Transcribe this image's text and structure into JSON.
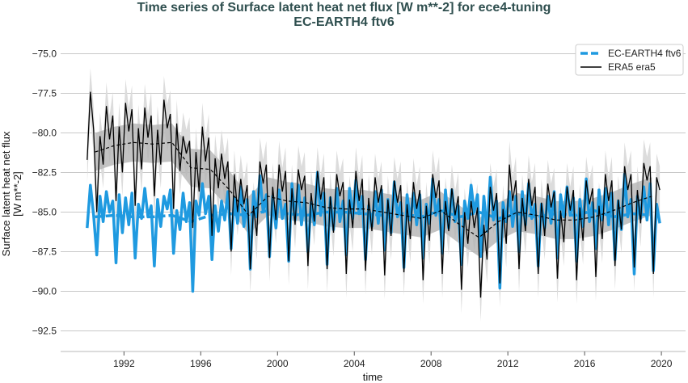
{
  "chart_data": {
    "type": "line",
    "title": "Time series of Surface latent heat net flux [W m**-2] for ece4-tuning",
    "subtitle": "EC-EARTH4 ftv6",
    "xlabel": "time",
    "ylabel": [
      "Surface latent heat net flux",
      "[W m**-2]"
    ],
    "xlim": [
      1988.7,
      2021.26
    ],
    "ylim": [
      -93.8,
      -73.9
    ],
    "xticks": [
      1992,
      1996,
      2000,
      2004,
      2008,
      2012,
      2016,
      2020
    ],
    "yticks": [
      -75.0,
      -77.5,
      -80.0,
      -82.5,
      -85.0,
      -87.5,
      -90.0,
      -92.5
    ],
    "grid": "horizontal",
    "legend_placement": "top-right",
    "start_year": 1990,
    "samples_per_year": 6,
    "series": [
      {
        "name": "EC-EARTH4 ftv6",
        "color": "#1f9ae0",
        "values": [
          -86.0,
          -83.3,
          -85.2,
          -87.7,
          -84.0,
          -85.6,
          -83.7,
          -85.0,
          -84.3,
          -88.2,
          -83.9,
          -86.3,
          -84.1,
          -85.8,
          -83.8,
          -87.9,
          -84.5,
          -85.4,
          -83.5,
          -85.3,
          -84.6,
          -88.4,
          -84.2,
          -85.9,
          -84.0,
          -84.8,
          -83.6,
          -87.6,
          -84.9,
          -86.1,
          -83.8,
          -85.6,
          -84.4,
          -90.0,
          -84.3,
          -85.2,
          -83.2,
          -85.1,
          -84.0,
          -88.0,
          -84.6,
          -86.2,
          -84.3,
          -85.5,
          -83.7,
          -87.3,
          -84.1,
          -85.7,
          -83.4,
          -85.9,
          -84.2,
          -88.6,
          -83.7,
          -85.3,
          -82.7,
          -85.0,
          -83.9,
          -87.8,
          -84.0,
          -86.0,
          -83.6,
          -85.4,
          -84.5,
          -88.1,
          -83.2,
          -85.5,
          -83.3,
          -85.8,
          -84.1,
          -87.5,
          -84.4,
          -85.8,
          -82.5,
          -85.2,
          -83.8,
          -88.3,
          -84.1,
          -86.1,
          -83.5,
          -85.6,
          -84.3,
          -87.7,
          -83.5,
          -85.4,
          -83.0,
          -85.1,
          -84.0,
          -88.0,
          -84.6,
          -85.9,
          -83.7,
          -85.7,
          -83.6,
          -87.4,
          -84.2,
          -86.3,
          -83.1,
          -85.3,
          -84.4,
          -88.5,
          -83.9,
          -85.5,
          -83.8,
          -85.8,
          -83.9,
          -87.9,
          -84.5,
          -85.7,
          -82.9,
          -85.2,
          -84.2,
          -87.6,
          -83.6,
          -86.0,
          -83.6,
          -85.6,
          -84.6,
          -88.3,
          -84.3,
          -85.4,
          -83.3,
          -85.0,
          -83.9,
          -87.8,
          -84.0,
          -86.2,
          -82.8,
          -85.5,
          -84.3,
          -89.8,
          -84.4,
          -85.6,
          -83.7,
          -85.9,
          -84.0,
          -87.5,
          -83.7,
          -85.8,
          -83.2,
          -85.4,
          -84.5,
          -88.4,
          -84.5,
          -86.0,
          -84.0,
          -85.7,
          -83.7,
          -87.9,
          -83.9,
          -85.3,
          -83.4,
          -85.2,
          -84.1,
          -88.1,
          -84.2,
          -85.9,
          -82.9,
          -85.6,
          -84.4,
          -87.3,
          -83.6,
          -85.5,
          -83.5,
          -85.8,
          -83.8,
          -88.0,
          -84.3,
          -86.1,
          -82.6,
          -85.3,
          -84.2,
          -88.9,
          -84.0,
          -85.4,
          -83.4,
          -85.5,
          -83.2,
          -88.7,
          -84.5,
          -85.7
        ],
        "annual_means": [
          -85.3,
          -85.2,
          -85.3,
          -85.3,
          -85.2,
          -85.6,
          -85.2,
          -85.1,
          -85.2,
          -84.9,
          -85.1,
          -85.2,
          -85.0,
          -85.0,
          -85.1,
          -85.2,
          -85.1,
          -85.3,
          -84.9,
          -85.3,
          -85.0,
          -85.4,
          -85.1,
          -85.3,
          -85.1,
          -85.2,
          -84.9,
          -85.3,
          -85.1,
          -85.2
        ]
      },
      {
        "name": "ERA5 era5",
        "color": "#000000",
        "values": [
          -81.7,
          -77.4,
          -79.8,
          -85.0,
          -80.2,
          -82.0,
          -78.3,
          -80.4,
          -78.9,
          -84.3,
          -79.6,
          -82.5,
          -78.1,
          -79.9,
          -78.5,
          -84.6,
          -79.7,
          -82.3,
          -78.4,
          -80.3,
          -78.9,
          -84.0,
          -79.8,
          -82.0,
          -77.9,
          -79.7,
          -78.8,
          -84.8,
          -79.4,
          -82.4,
          -80.2,
          -81.3,
          -80.5,
          -86.0,
          -81.2,
          -83.7,
          -79.6,
          -81.8,
          -80.3,
          -86.5,
          -81.6,
          -83.5,
          -81.3,
          -82.9,
          -81.8,
          -87.5,
          -82.6,
          -85.0,
          -82.9,
          -84.5,
          -83.3,
          -88.6,
          -84.6,
          -86.5,
          -81.8,
          -83.2,
          -82.0,
          -87.9,
          -83.4,
          -85.5,
          -82.0,
          -83.7,
          -82.4,
          -88.1,
          -83.5,
          -85.8,
          -82.3,
          -83.6,
          -82.7,
          -88.4,
          -83.8,
          -85.6,
          -82.4,
          -84.2,
          -82.8,
          -88.6,
          -84.0,
          -86.3,
          -82.6,
          -84.0,
          -83.1,
          -88.9,
          -84.2,
          -86.0,
          -82.4,
          -84.3,
          -82.9,
          -88.7,
          -84.1,
          -86.2,
          -82.8,
          -84.4,
          -83.3,
          -89.0,
          -84.2,
          -86.5,
          -83.0,
          -84.4,
          -83.3,
          -88.8,
          -84.5,
          -86.7,
          -83.1,
          -84.8,
          -83.6,
          -89.3,
          -84.6,
          -86.8,
          -82.6,
          -84.1,
          -83.0,
          -88.9,
          -84.3,
          -86.2,
          -83.5,
          -85.2,
          -84.0,
          -89.9,
          -85.0,
          -87.0,
          -84.3,
          -86.0,
          -84.7,
          -90.4,
          -85.8,
          -88.0,
          -83.4,
          -84.9,
          -83.8,
          -89.5,
          -84.8,
          -87.0,
          -82.0,
          -84.3,
          -83.0,
          -88.6,
          -84.1,
          -86.2,
          -82.9,
          -84.6,
          -83.4,
          -88.9,
          -84.4,
          -86.5,
          -83.2,
          -84.7,
          -83.7,
          -89.2,
          -84.9,
          -86.9,
          -83.4,
          -84.9,
          -83.6,
          -89.3,
          -84.7,
          -86.8,
          -83.0,
          -84.5,
          -83.5,
          -89.1,
          -84.6,
          -86.7,
          -82.6,
          -84.3,
          -83.0,
          -88.4,
          -84.2,
          -86.1,
          -82.1,
          -83.6,
          -82.6,
          -88.5,
          -83.6,
          -85.7,
          -81.9,
          -83.0,
          -82.1,
          -88.9,
          -82.8,
          -83.6
        ],
        "annual_means": [
          -81.2,
          -80.8,
          -80.6,
          -80.7,
          -80.6,
          -82.2,
          -82.3,
          -83.6,
          -85.2,
          -84.0,
          -84.3,
          -84.4,
          -84.7,
          -84.8,
          -84.8,
          -85.0,
          -85.2,
          -85.4,
          -84.9,
          -85.8,
          -86.6,
          -85.6,
          -85.0,
          -85.2,
          -85.5,
          -85.5,
          -85.3,
          -84.9,
          -84.4,
          -84.0
        ],
        "monthly_spread": 1.5,
        "annual_spread": 1.2
      }
    ]
  }
}
